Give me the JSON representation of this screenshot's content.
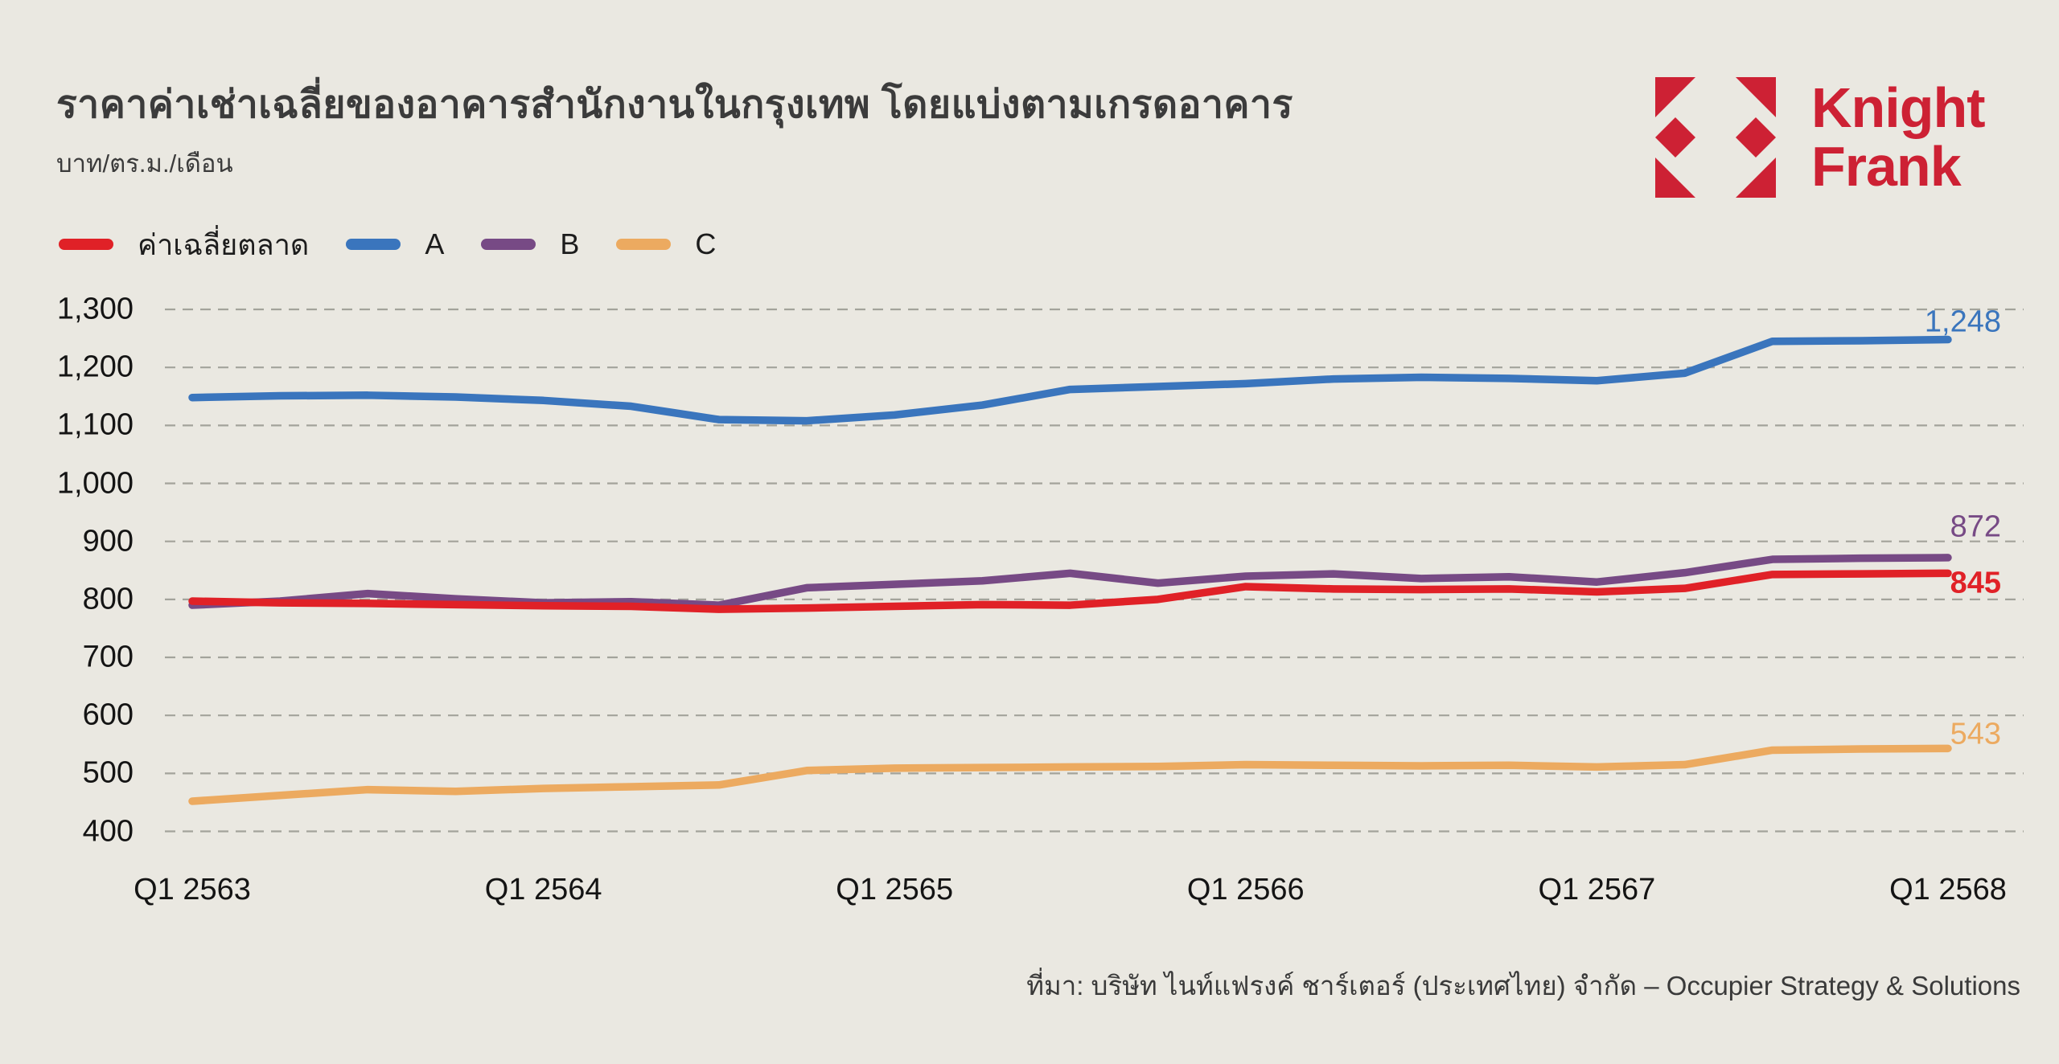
{
  "header": {
    "title": "ราคาค่าเช่าเฉลี่ยของอาคารสำนักงานในกรุงเทพ โดยแบ่งตามเกรดอาคาร",
    "subtitle": "บาท/ตร.ม./เดือน"
  },
  "logo": {
    "line1": "Knight",
    "line2": "Frank",
    "color": "#cd2134"
  },
  "legend": {
    "items": [
      {
        "label": "ค่าเฉลี่ยตลาด",
        "color": "#e02127"
      },
      {
        "label": "A",
        "color": "#3a75bd"
      },
      {
        "label": "B",
        "color": "#774a85"
      },
      {
        "label": "C",
        "color": "#ecaa60"
      }
    ]
  },
  "source": "ที่มา: บริษัท ไนท์แฟรงค์ ชาร์เตอร์ (ประเทศไทย) จำกัด – Occupier Strategy & Solutions",
  "colors": {
    "background": "#eae8e1",
    "grid": "#a3a39b",
    "axis_text": "#141414",
    "title_text": "#3b3b3b",
    "market_avg": "#e02127",
    "grade_a": "#3a75bd",
    "grade_b": "#774a85",
    "grade_c": "#ecaa60",
    "brand_red": "#cd2134"
  },
  "chart_data": {
    "type": "line",
    "title": "ราคาค่าเช่าเฉลี่ยของอาคารสำนักงานในกรุงเทพ โดยแบ่งตามเกรดอาคาร",
    "ylabel": "บาท/ตร.ม./เดือน",
    "xlabel": "",
    "grid": "horizontal-dashed",
    "legend_position": "top-left",
    "ylim": [
      400,
      1300
    ],
    "y_ticks": [
      400,
      500,
      600,
      700,
      800,
      900,
      1000,
      1100,
      1200,
      1300
    ],
    "y_tick_labels": [
      "400",
      "500",
      "600",
      "700",
      "800",
      "900",
      "1,000",
      "1,100",
      "1,200",
      "1,300"
    ],
    "x_tick_labels": [
      "Q1 2563",
      "Q1 2564",
      "Q1 2565",
      "Q1 2566",
      "Q1 2567",
      "Q1 2568"
    ],
    "categories": [
      "Q1 2563",
      "Q2 2563",
      "Q3 2563",
      "Q4 2563",
      "Q1 2564",
      "Q2 2564",
      "Q3 2564",
      "Q4 2564",
      "Q1 2565",
      "Q2 2565",
      "Q3 2565",
      "Q4 2565",
      "Q1 2566",
      "Q2 2566",
      "Q3 2566",
      "Q4 2566",
      "Q1 2567",
      "Q2 2567",
      "Q3 2567",
      "Q4 2567",
      "Q1 2568"
    ],
    "series": [
      {
        "name": "A",
        "color": "#3a75bd",
        "end_label": "1,248",
        "end_label_bold": false,
        "values": [
          1148,
          1151,
          1152,
          1149,
          1143,
          1133,
          1110,
          1108,
          1118,
          1135,
          1162,
          1167,
          1172,
          1180,
          1183,
          1181,
          1177,
          1190,
          1245,
          1246,
          1248
        ]
      },
      {
        "name": "C",
        "color": "#ecaa60",
        "end_label": "543",
        "end_label_bold": false,
        "values": [
          452,
          462,
          472,
          469,
          474,
          477,
          480,
          505,
          509,
          510,
          511,
          512,
          515,
          514,
          513,
          514,
          511,
          515,
          540,
          542,
          543
        ]
      },
      {
        "name": "B",
        "color": "#774a85",
        "end_label": "872",
        "end_label_bold": false,
        "values": [
          790,
          797,
          810,
          801,
          794,
          796,
          790,
          820,
          826,
          832,
          845,
          828,
          840,
          844,
          836,
          839,
          830,
          846,
          869,
          871,
          872
        ]
      },
      {
        "name": "ค่าเฉลี่ยตลาด",
        "color": "#e02127",
        "end_label": "845",
        "end_label_bold": true,
        "values": [
          797,
          794,
          793,
          791,
          789,
          788,
          783,
          785,
          788,
          791,
          790,
          800,
          822,
          818,
          817,
          818,
          813,
          819,
          843,
          844,
          845
        ]
      }
    ]
  }
}
